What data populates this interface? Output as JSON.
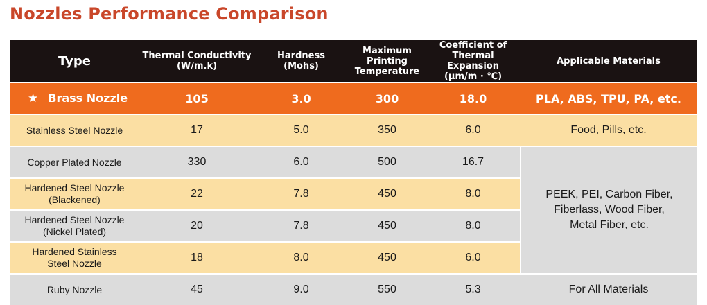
{
  "title": "Nozzles Performance Comparison",
  "columns": {
    "type": "Type",
    "thermal": [
      "Thermal Conductivity",
      "(W/m.k)"
    ],
    "hardness": [
      "Hardness",
      "(Mohs)"
    ],
    "temperature": [
      "Maximum",
      "Printing",
      "Temperature"
    ],
    "expansion": [
      "Coefficient of",
      "Thermal Expansion",
      "(μm/m · ℃)"
    ],
    "materials": "Applicable Materials"
  },
  "rows": [
    {
      "name": [
        "Brass Nozzle"
      ],
      "thermal": "105",
      "hardness": "3.0",
      "temperature": "300",
      "expansion": "18.0",
      "materials": "PLA, ABS, TPU, PA, etc."
    },
    {
      "name": [
        "Stainless Steel Nozzle"
      ],
      "thermal": "17",
      "hardness": "5.0",
      "temperature": "350",
      "expansion": "6.0",
      "materials": "Food, Pills, etc."
    },
    {
      "name": [
        "Copper Plated Nozzle"
      ],
      "thermal": "330",
      "hardness": "6.0",
      "temperature": "500",
      "expansion": "16.7"
    },
    {
      "name": [
        "Hardened Steel Nozzle",
        "(Blackened)"
      ],
      "thermal": "22",
      "hardness": "7.8",
      "temperature": "450",
      "expansion": "8.0"
    },
    {
      "name": [
        "Hardened Steel Nozzle",
        "(Nickel Plated)"
      ],
      "thermal": "20",
      "hardness": "7.8",
      "temperature": "450",
      "expansion": "8.0"
    },
    {
      "name": [
        "Hardened Stainless",
        "Steel Nozzle"
      ],
      "thermal": "18",
      "hardness": "8.0",
      "temperature": "450",
      "expansion": "6.0"
    },
    {
      "name": [
        "Ruby Nozzle"
      ],
      "thermal": "45",
      "hardness": "9.0",
      "temperature": "550",
      "expansion": "5.3",
      "materials": "For All Materials"
    }
  ],
  "merged_materials": [
    "PEEK, PEI, Carbon Fiber,",
    "Fiberlass, Wood Fiber,",
    "Metal Fiber, etc."
  ],
  "icons": {
    "highlight": "star-icon"
  },
  "colors": {
    "title": "#c9472a",
    "header": "#1a1212",
    "highlight": "#ef6b1e",
    "cream": "#fbdfa3",
    "grey": "#dcdcdc"
  }
}
